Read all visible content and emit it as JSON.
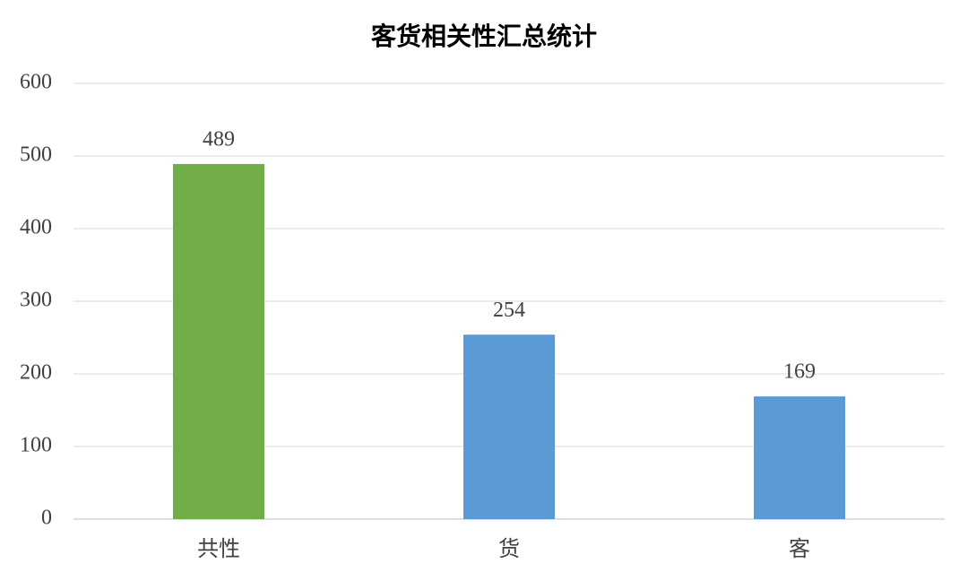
{
  "chart_data": {
    "type": "bar",
    "title": "客货相关性汇总统计",
    "categories": [
      "共性",
      "货",
      "客"
    ],
    "values": [
      489,
      254,
      169
    ],
    "colors": [
      "#70ad47",
      "#5b9bd5",
      "#5b9bd5"
    ],
    "ylim": [
      0,
      600
    ],
    "yticks": [
      0,
      100,
      200,
      300,
      400,
      500,
      600
    ],
    "grid": true
  }
}
